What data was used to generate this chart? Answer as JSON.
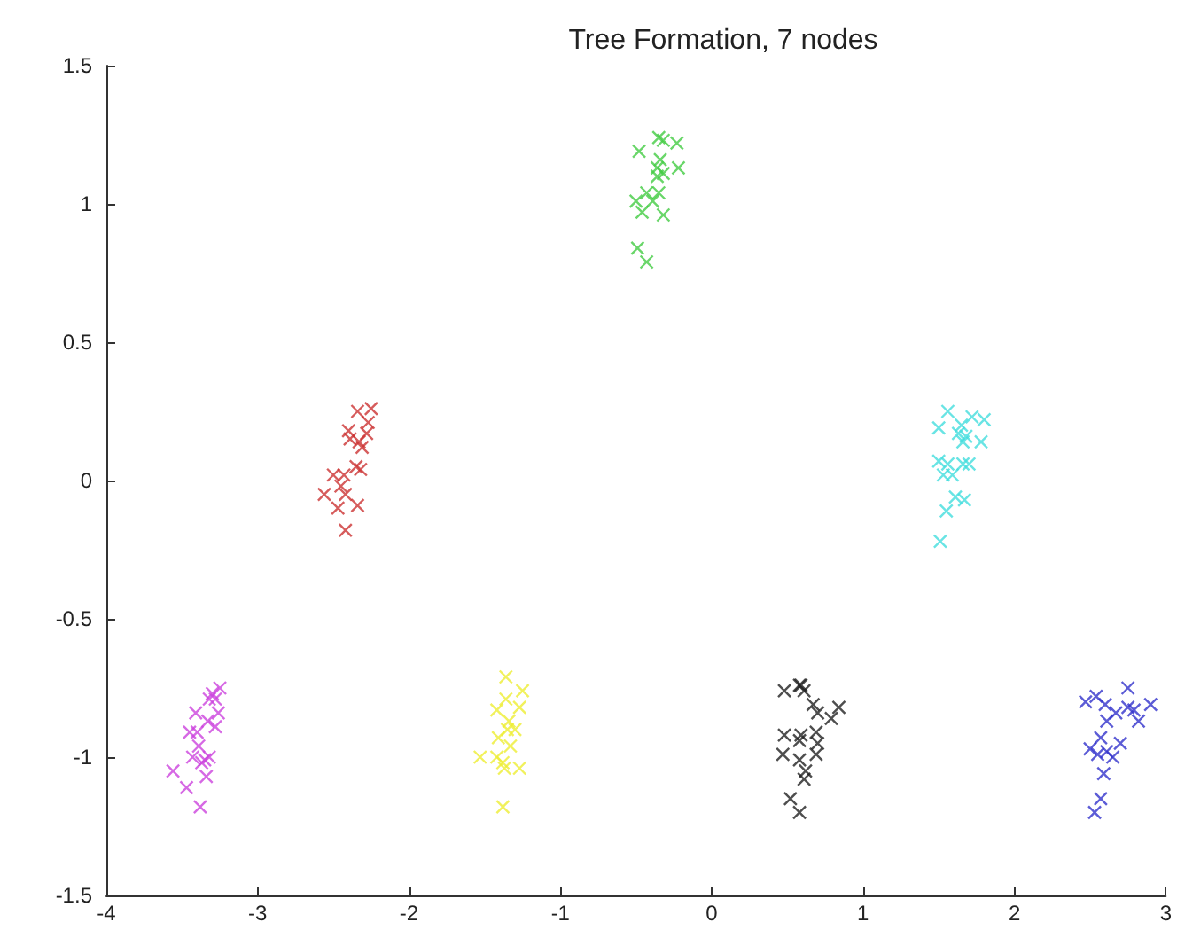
{
  "chart_data": {
    "type": "scatter",
    "title": "Tree Formation, 7 nodes",
    "xlim": [
      -4,
      3
    ],
    "xticks": [
      -4,
      -3,
      -2,
      -1,
      0,
      1,
      2,
      3
    ],
    "ylim": [
      -1.5,
      1.5
    ],
    "yticks": [
      -1.5,
      -1,
      -0.5,
      0,
      0.5,
      1,
      1.5
    ],
    "grid": false,
    "marker": "cross",
    "series": [
      {
        "color": "#cc3333",
        "x": [
          -2.34,
          -2.25,
          -2.27,
          -2.4,
          -2.39,
          -2.28,
          -2.33,
          -2.31,
          -2.35,
          -2.32,
          -2.5,
          -2.43,
          -2.45,
          -2.56,
          -2.42,
          -2.34,
          -2.47,
          -2.42
        ],
        "values": [
          0.25,
          0.26,
          0.21,
          0.18,
          0.15,
          0.17,
          0.14,
          0.12,
          0.05,
          0.04,
          0.02,
          0.02,
          -0.02,
          -0.05,
          -0.05,
          -0.09,
          -0.1,
          -0.18
        ]
      },
      {
        "color": "#44cc44",
        "x": [
          -0.48,
          -0.35,
          -0.32,
          -0.23,
          -0.34,
          -0.36,
          -0.22,
          -0.36,
          -0.32,
          -0.43,
          -0.35,
          -0.5,
          -0.39,
          -0.46,
          -0.32,
          -0.49,
          -0.43
        ],
        "values": [
          1.19,
          1.24,
          1.23,
          1.22,
          1.16,
          1.13,
          1.13,
          1.1,
          1.11,
          1.04,
          1.04,
          1.01,
          1.01,
          0.97,
          0.96,
          0.84,
          0.79
        ]
      },
      {
        "color": "#44dddd",
        "x": [
          1.56,
          1.5,
          1.72,
          1.8,
          1.65,
          1.63,
          1.68,
          1.78,
          1.66,
          1.5,
          1.56,
          1.66,
          1.7,
          1.53,
          1.59,
          1.61,
          1.67,
          1.55,
          1.51
        ],
        "values": [
          0.25,
          0.19,
          0.23,
          0.22,
          0.2,
          0.17,
          0.16,
          0.14,
          0.14,
          0.07,
          0.06,
          0.06,
          0.06,
          0.02,
          0.02,
          -0.06,
          -0.07,
          -0.11,
          -0.22
        ]
      },
      {
        "color": "#cc44dd",
        "x": [
          -3.25,
          -3.3,
          -3.32,
          -3.28,
          -3.41,
          -3.26,
          -3.33,
          -3.28,
          -3.45,
          -3.4,
          -3.39,
          -3.43,
          -3.32,
          -3.37,
          -3.35,
          -3.56,
          -3.34,
          -3.47,
          -3.38
        ],
        "values": [
          -0.75,
          -0.77,
          -0.79,
          -0.79,
          -0.84,
          -0.84,
          -0.87,
          -0.89,
          -0.91,
          -0.91,
          -0.96,
          -1.0,
          -1.0,
          -1.02,
          -1.01,
          -1.05,
          -1.07,
          -1.11,
          -1.18
        ]
      },
      {
        "color": "#eeee33",
        "x": [
          -1.36,
          -1.36,
          -1.25,
          -1.42,
          -1.27,
          -1.34,
          -1.3,
          -1.35,
          -1.41,
          -1.33,
          -1.53,
          -1.42,
          -1.38,
          -1.27,
          -1.37,
          -1.38
        ],
        "values": [
          -0.71,
          -0.79,
          -0.76,
          -0.83,
          -0.82,
          -0.87,
          -0.9,
          -0.9,
          -0.93,
          -0.96,
          -1.0,
          -1.0,
          -1.02,
          -1.04,
          -1.04,
          -1.18
        ]
      },
      {
        "color": "#222222",
        "x": [
          0.48,
          0.58,
          0.61,
          0.59,
          0.67,
          0.84,
          0.7,
          0.79,
          0.48,
          0.59,
          0.69,
          0.58,
          0.7,
          0.69,
          0.47,
          0.58,
          0.62,
          0.61,
          0.52,
          0.58
        ],
        "values": [
          -0.76,
          -0.74,
          -0.76,
          -0.74,
          -0.81,
          -0.82,
          -0.84,
          -0.86,
          -0.92,
          -0.92,
          -0.91,
          -0.94,
          -0.95,
          -0.99,
          -0.99,
          -1.01,
          -1.05,
          -1.08,
          -1.15,
          -1.2
        ]
      },
      {
        "color": "#3333cc",
        "x": [
          2.47,
          2.54,
          2.6,
          2.75,
          2.75,
          2.9,
          2.79,
          2.67,
          2.61,
          2.82,
          2.57,
          2.7,
          2.5,
          2.61,
          2.65,
          2.55,
          2.59,
          2.57,
          2.53
        ],
        "values": [
          -0.8,
          -0.78,
          -0.81,
          -0.75,
          -0.82,
          -0.81,
          -0.83,
          -0.84,
          -0.87,
          -0.87,
          -0.93,
          -0.95,
          -0.97,
          -0.98,
          -1.0,
          -0.99,
          -1.06,
          -1.15,
          -1.2
        ]
      }
    ]
  }
}
